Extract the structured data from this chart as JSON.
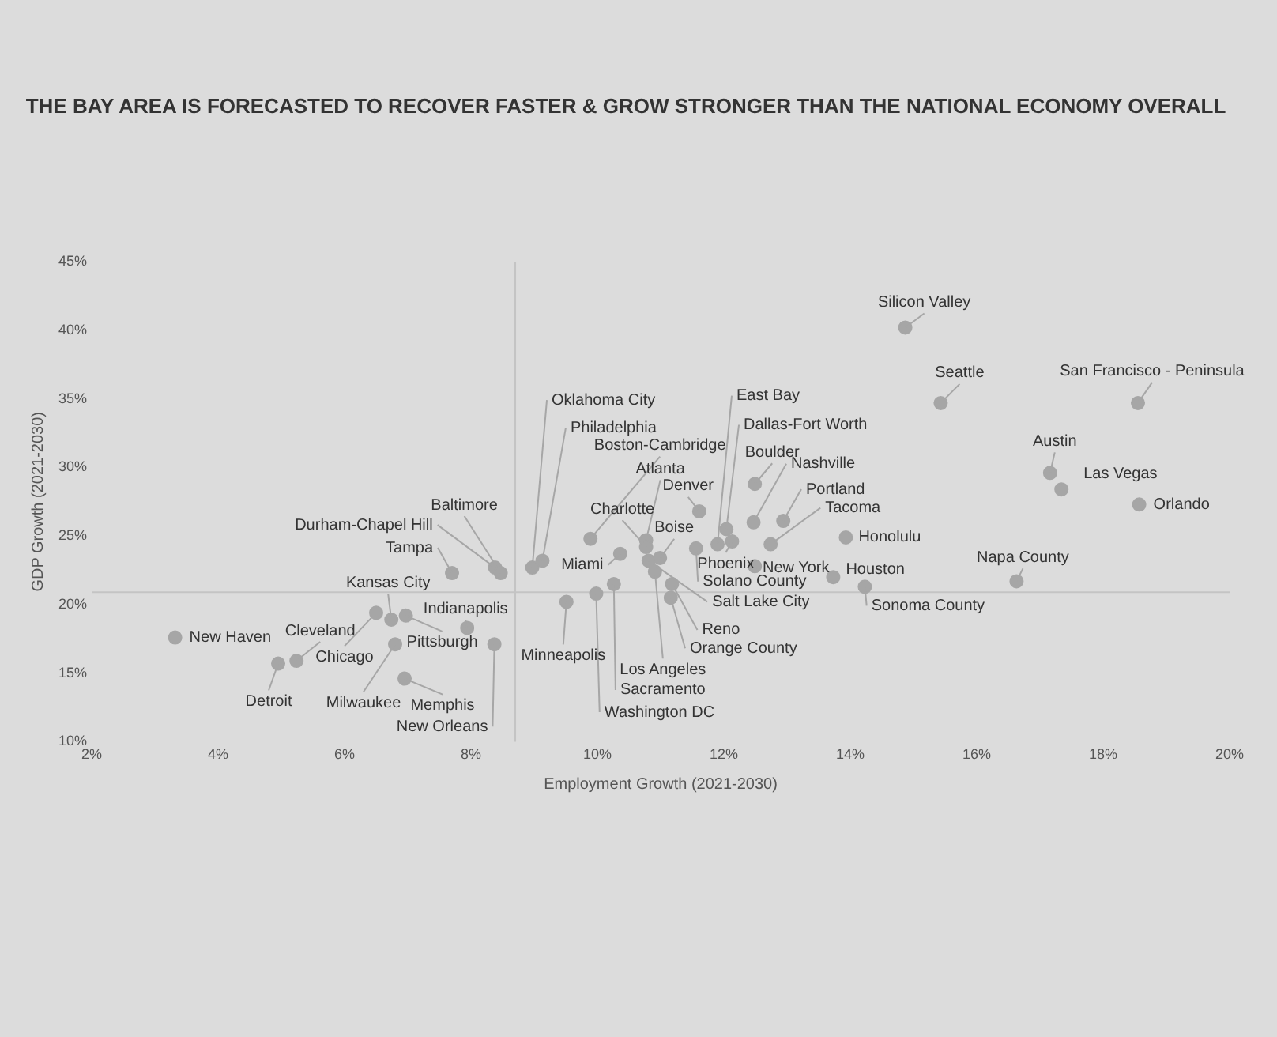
{
  "chart_data": {
    "type": "scatter",
    "title": "THE BAY AREA IS FORECASTED TO RECOVER FASTER & GROW STRONGER THAN THE NATIONAL ECONOMY OVERALL",
    "xlabel": "Employment Growth (2021-2030)",
    "ylabel": "GDP Growth (2021-2030)",
    "x": [
      3.32,
      4.95,
      5.24,
      6.5,
      6.74,
      6.97,
      6.8,
      6.95,
      7.94,
      8.37,
      7.7,
      8.38,
      8.47,
      8.97,
      9.13,
      9.89,
      10.36,
      10.77,
      10.77,
      10.81,
      10.99,
      10.91,
      10.26,
      9.98,
      9.51,
      11.18,
      11.16,
      11.61,
      11.56,
      12.13,
      11.9,
      12.04,
      12.49,
      12.47,
      12.94,
      12.74,
      12.49,
      13.93,
      13.73,
      14.23,
      14.87,
      15.43,
      18.55,
      17.16,
      17.34,
      18.57,
      16.63
    ],
    "series": [
      {
        "color": "#a6a6a6",
        "values": [
          17.6,
          15.7,
          15.9,
          19.4,
          18.9,
          19.2,
          17.1,
          14.6,
          18.3,
          17.1,
          22.3,
          22.7,
          22.3,
          22.7,
          23.2,
          24.8,
          23.7,
          24.7,
          24.2,
          23.2,
          23.4,
          22.4,
          21.5,
          20.8,
          20.2,
          21.5,
          20.5,
          26.8,
          24.1,
          24.6,
          24.4,
          25.5,
          28.8,
          26.0,
          26.1,
          24.4,
          22.8,
          24.9,
          22.0,
          21.3,
          40.2,
          34.7,
          34.7,
          29.6,
          28.4,
          27.3,
          21.7
        ]
      }
    ],
    "annotations": [
      {
        "text": "New Haven",
        "x": 3.32,
        "y": 17.6
      },
      {
        "text": "Detroit",
        "x": 4.95,
        "y": 15.7
      },
      {
        "text": "Cleveland",
        "x": 5.24,
        "y": 15.9
      },
      {
        "text": "Chicago",
        "x": 6.5,
        "y": 19.4
      },
      {
        "text": "Kansas City",
        "x": 6.74,
        "y": 18.9
      },
      {
        "text": "Pittsburgh",
        "x": 6.97,
        "y": 19.2
      },
      {
        "text": "Milwaukee",
        "x": 6.8,
        "y": 17.1
      },
      {
        "text": "Memphis",
        "x": 6.95,
        "y": 14.6
      },
      {
        "text": "Indianapolis",
        "x": 7.94,
        "y": 18.3
      },
      {
        "text": "New Orleans",
        "x": 8.37,
        "y": 17.1
      },
      {
        "text": "Tampa",
        "x": 7.7,
        "y": 22.3
      },
      {
        "text": "Durham-Chapel Hill",
        "x": 8.38,
        "y": 22.7
      },
      {
        "text": "Baltimore",
        "x": 8.47,
        "y": 22.3
      },
      {
        "text": "Oklahoma City",
        "x": 8.97,
        "y": 22.7
      },
      {
        "text": "Philadelphia",
        "x": 9.13,
        "y": 23.2
      },
      {
        "text": "Boston-Cambridge",
        "x": 9.89,
        "y": 24.8
      },
      {
        "text": "Miami",
        "x": 10.36,
        "y": 23.7
      },
      {
        "text": "Atlanta",
        "x": 10.77,
        "y": 24.7
      },
      {
        "text": "Charlotte",
        "x": 10.77,
        "y": 24.2
      },
      {
        "text": "Salt Lake City",
        "x": 10.81,
        "y": 23.2
      },
      {
        "text": "Boise",
        "x": 10.99,
        "y": 23.4
      },
      {
        "text": "Los Angeles",
        "x": 10.91,
        "y": 22.4
      },
      {
        "text": "Sacramento",
        "x": 10.26,
        "y": 21.5
      },
      {
        "text": "Washington DC",
        "x": 9.98,
        "y": 20.8
      },
      {
        "text": "Minneapolis",
        "x": 9.51,
        "y": 20.2
      },
      {
        "text": "Reno",
        "x": 11.18,
        "y": 21.5
      },
      {
        "text": "Orange County",
        "x": 11.16,
        "y": 20.5
      },
      {
        "text": "Denver",
        "x": 11.61,
        "y": 26.8
      },
      {
        "text": "Solano County",
        "x": 11.56,
        "y": 24.1
      },
      {
        "text": "Phoenix",
        "x": 12.13,
        "y": 24.6
      },
      {
        "text": "East Bay",
        "x": 11.9,
        "y": 24.4
      },
      {
        "text": "Dallas-Fort Worth",
        "x": 12.04,
        "y": 25.5
      },
      {
        "text": "Boulder",
        "x": 12.49,
        "y": 28.8
      },
      {
        "text": "Nashville",
        "x": 12.47,
        "y": 26.0
      },
      {
        "text": "Portland",
        "x": 12.94,
        "y": 26.1
      },
      {
        "text": "Tacoma",
        "x": 12.74,
        "y": 24.4
      },
      {
        "text": "New York",
        "x": 12.49,
        "y": 22.8
      },
      {
        "text": "Honolulu",
        "x": 13.93,
        "y": 24.9
      },
      {
        "text": "Houston",
        "x": 13.73,
        "y": 22.0
      },
      {
        "text": "Sonoma County",
        "x": 14.23,
        "y": 21.3
      },
      {
        "text": "Silicon Valley",
        "x": 14.87,
        "y": 40.2
      },
      {
        "text": "Seattle",
        "x": 15.43,
        "y": 34.7
      },
      {
        "text": "San Francisco - Peninsula",
        "x": 18.55,
        "y": 34.7
      },
      {
        "text": "Austin",
        "x": 17.16,
        "y": 29.6
      },
      {
        "text": "Las Vegas",
        "x": 17.34,
        "y": 28.4
      },
      {
        "text": "Orlando",
        "x": 18.57,
        "y": 27.3
      },
      {
        "text": "Napa County",
        "x": 16.63,
        "y": 21.7
      }
    ],
    "xlim": [
      2,
      20
    ],
    "xticks": [
      {
        "value": 2,
        "label": "2%"
      },
      {
        "value": 4,
        "label": "4%"
      },
      {
        "value": 6,
        "label": "6%"
      },
      {
        "value": 8,
        "label": "8%"
      },
      {
        "value": 10,
        "label": "10%"
      },
      {
        "value": 12,
        "label": "12%"
      },
      {
        "value": 14,
        "label": "14%"
      },
      {
        "value": 16,
        "label": "16%"
      },
      {
        "value": 18,
        "label": "18%"
      },
      {
        "value": 20,
        "label": "20%"
      }
    ],
    "ylim": [
      10,
      45
    ],
    "yticks": [
      {
        "value": 10,
        "label": "10%"
      },
      {
        "value": 15,
        "label": "15%"
      },
      {
        "value": 20,
        "label": "20%"
      },
      {
        "value": 25,
        "label": "25%"
      },
      {
        "value": 30,
        "label": "30%"
      },
      {
        "value": 35,
        "label": "35%"
      },
      {
        "value": 40,
        "label": "40%"
      },
      {
        "value": 45,
        "label": "45%"
      }
    ],
    "ref_lines": [
      {
        "axis": "x",
        "value": 8.7,
        "color": "#c4c4c4"
      },
      {
        "axis": "y",
        "value": 20.9,
        "color": "#c4c4c4"
      }
    ],
    "grid": false,
    "legend": false,
    "marker": "circle"
  }
}
